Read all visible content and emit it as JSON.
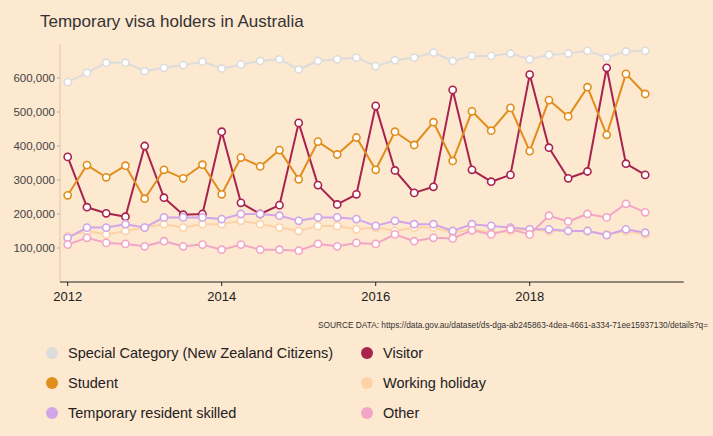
{
  "chart_data": {
    "type": "line",
    "title": "Temporary visa holders in Australia",
    "source": "SOURCE DATA: https://data.gov.au/dataset/ds-dga-ab245863-4dea-4661-a334-71ee15937130/details?q=",
    "x": [
      2012,
      2012.25,
      2012.5,
      2012.75,
      2013,
      2013.25,
      2013.5,
      2013.75,
      2014,
      2014.25,
      2014.5,
      2014.75,
      2015,
      2015.25,
      2015.5,
      2015.75,
      2016,
      2016.25,
      2016.5,
      2016.75,
      2017,
      2017.25,
      2017.5,
      2017.75,
      2018,
      2018.25,
      2018.5,
      2018.75,
      2019,
      2019.25,
      2019.5
    ],
    "xlim": [
      2011.9,
      2020
    ],
    "xticks": [
      2012,
      2014,
      2016,
      2018
    ],
    "ylim": [
      0,
      700000
    ],
    "yticks": [
      {
        "value": 100000,
        "label": "100,000"
      },
      {
        "value": 200000,
        "label": "200,000"
      },
      {
        "value": 300000,
        "label": "300,000"
      },
      {
        "value": 400000,
        "label": "400,000"
      },
      {
        "value": 500000,
        "label": "500,000"
      },
      {
        "value": 600000,
        "label": "600,000"
      }
    ],
    "grid": false,
    "legend": "bottom",
    "marker": "circle",
    "line_style": "solid",
    "series": [
      {
        "name": "Special Category (New Zealand Citizens)",
        "color": "#dcdcdc",
        "values": [
          588000,
          615000,
          645000,
          645000,
          620000,
          630000,
          638000,
          648000,
          628000,
          640000,
          650000,
          655000,
          625000,
          650000,
          655000,
          660000,
          635000,
          652000,
          660000,
          675000,
          650000,
          665000,
          665000,
          672000,
          655000,
          668000,
          672000,
          680000,
          660000,
          678000,
          680000
        ]
      },
      {
        "name": "Visitor",
        "color": "#a8234e",
        "values": [
          368000,
          220000,
          202000,
          192000,
          400000,
          248000,
          198000,
          200000,
          442000,
          233000,
          200000,
          226000,
          468000,
          285000,
          228000,
          258000,
          518000,
          328000,
          262000,
          280000,
          565000,
          330000,
          295000,
          315000,
          610000,
          395000,
          305000,
          325000,
          630000,
          348000,
          315000
        ]
      },
      {
        "name": "Student",
        "color": "#e08e1b",
        "values": [
          255000,
          344000,
          308000,
          342000,
          245000,
          330000,
          305000,
          345000,
          258000,
          366000,
          340000,
          388000,
          302000,
          413000,
          375000,
          425000,
          330000,
          442000,
          403000,
          470000,
          356000,
          502000,
          445000,
          512000,
          385000,
          535000,
          487000,
          573000,
          433000,
          612000,
          553000
        ]
      },
      {
        "name": "Working holiday",
        "color": "#fcd2a6",
        "values": [
          135000,
          150000,
          140000,
          150000,
          160000,
          170000,
          160000,
          170000,
          170000,
          180000,
          170000,
          160000,
          150000,
          165000,
          165000,
          155000,
          160000,
          150000,
          160000,
          160000,
          145000,
          155000,
          145000,
          150000,
          155000,
          150000,
          150000,
          150000,
          140000,
          150000,
          140000
        ]
      },
      {
        "name": "Temporary resident skilled",
        "color": "#d2a6e6",
        "values": [
          130000,
          160000,
          160000,
          170000,
          160000,
          190000,
          190000,
          190000,
          185000,
          200000,
          200000,
          195000,
          180000,
          190000,
          190000,
          185000,
          165000,
          180000,
          170000,
          170000,
          150000,
          170000,
          165000,
          160000,
          155000,
          155000,
          150000,
          150000,
          138000,
          155000,
          145000
        ]
      },
      {
        "name": "Other",
        "color": "#f2a6c6",
        "values": [
          110000,
          130000,
          115000,
          112000,
          105000,
          120000,
          105000,
          110000,
          95000,
          110000,
          95000,
          95000,
          92000,
          112000,
          105000,
          115000,
          112000,
          140000,
          120000,
          130000,
          128000,
          152000,
          140000,
          155000,
          140000,
          195000,
          178000,
          200000,
          190000,
          230000,
          205000
        ]
      }
    ]
  }
}
